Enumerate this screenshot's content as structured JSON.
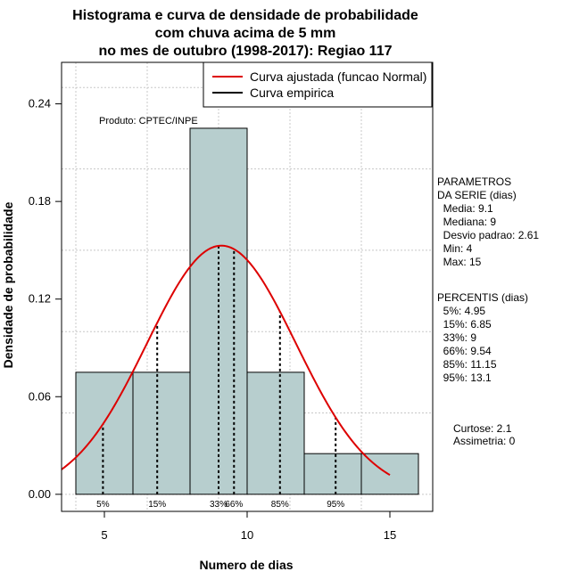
{
  "chart_data": {
    "type": "bar",
    "title_lines": [
      "Histograma e curva de densidade de probabilidade",
      "com chuva acima de 5 mm",
      "no mes de outubro (1998-2017): Regiao 117"
    ],
    "xlabel": "Numero de dias",
    "ylabel": "Densidade de probabilidade",
    "xlim": [
      3.5,
      16.5
    ],
    "ylim": [
      -0.0105,
      0.2655
    ],
    "x_ticks": [
      5,
      10,
      15
    ],
    "y_ticks": [
      0.0,
      0.06,
      0.12,
      0.18,
      0.24
    ],
    "y_tick_labels": [
      "0.00",
      "0.06",
      "0.12",
      "0.18",
      "0.24"
    ],
    "grid": true,
    "bars": [
      {
        "x0": 4,
        "x1": 6,
        "density": 0.075
      },
      {
        "x0": 6,
        "x1": 8,
        "density": 0.075
      },
      {
        "x0": 8,
        "x1": 10,
        "density": 0.225
      },
      {
        "x0": 10,
        "x1": 12,
        "density": 0.075
      },
      {
        "x0": 12,
        "x1": 14,
        "density": 0.025
      },
      {
        "x0": 14,
        "x1": 16,
        "density": 0.025
      }
    ],
    "bar_color": "#b7cece",
    "normal_curve": {
      "mean": 9.1,
      "sd": 2.61,
      "x_from": 3.5,
      "x_to": 15,
      "color": "#dd0000"
    },
    "percentile_lines": [
      {
        "label": "5%",
        "x": 4.95
      },
      {
        "label": "15%",
        "x": 6.85
      },
      {
        "label": "33%",
        "x": 9
      },
      {
        "label": "66%",
        "x": 9.54
      },
      {
        "label": "85%",
        "x": 11.15
      },
      {
        "label": "95%",
        "x": 13.1
      }
    ],
    "legend": {
      "position": "top-right",
      "entries": [
        {
          "label": "Curva ajustada (funcao Normal)",
          "color": "#dd0000"
        },
        {
          "label": "Curva empirica",
          "color": "#000000"
        }
      ]
    },
    "annotation": "Produto: CPTEC/INPE",
    "parametros": {
      "lines": [
        "PARAMETROS",
        "DA SERIE (dias)",
        "  Media: 9.1",
        "  Mediana: 9",
        "  Desvio padrao: 2.61",
        "  Min: 4",
        "  Max: 15"
      ]
    },
    "percentis": {
      "lines": [
        "PERCENTIS (dias)",
        "  5%: 4.95",
        "  15%: 6.85",
        "  33%: 9",
        "  66%: 9.54",
        "  85%: 11.15",
        "  95%: 13.1"
      ]
    },
    "shape_stats": {
      "lines": [
        "Curtose: 2.1",
        "Assimetria: 0"
      ]
    }
  }
}
